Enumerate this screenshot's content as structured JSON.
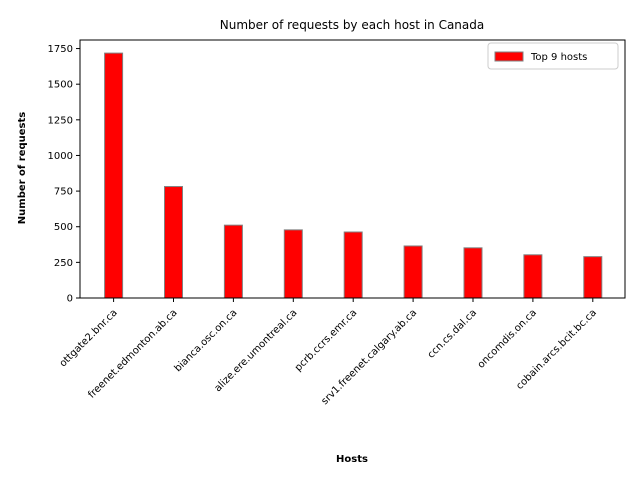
{
  "chart_data": {
    "type": "bar",
    "title": "Number of requests by each host in Canada",
    "xlabel": "Hosts",
    "ylabel": "Number of requests",
    "categories": [
      "ottgate2.bnr.ca",
      "freenet.edmonton.ab.ca",
      "bianca.osc.on.ca",
      "alize.ere.umontreal.ca",
      "pcrb.ccrs.emr.ca",
      "srv1.freenet.calgary.ab.ca",
      "ccn.cs.dal.ca",
      "oncomdis.on.ca",
      "cobain.arcs.bcit.bc.ca"
    ],
    "series": [
      {
        "name": "Top 9 hosts",
        "values": [
          1718,
          782,
          511,
          478,
          463,
          365,
          352,
          303,
          290
        ],
        "color": "#ff0000"
      }
    ],
    "ylim": [
      0,
      1810
    ],
    "yticks": [
      0,
      250,
      500,
      750,
      1000,
      1250,
      1500,
      1750
    ],
    "legend_position": "top-right",
    "grid": false
  }
}
